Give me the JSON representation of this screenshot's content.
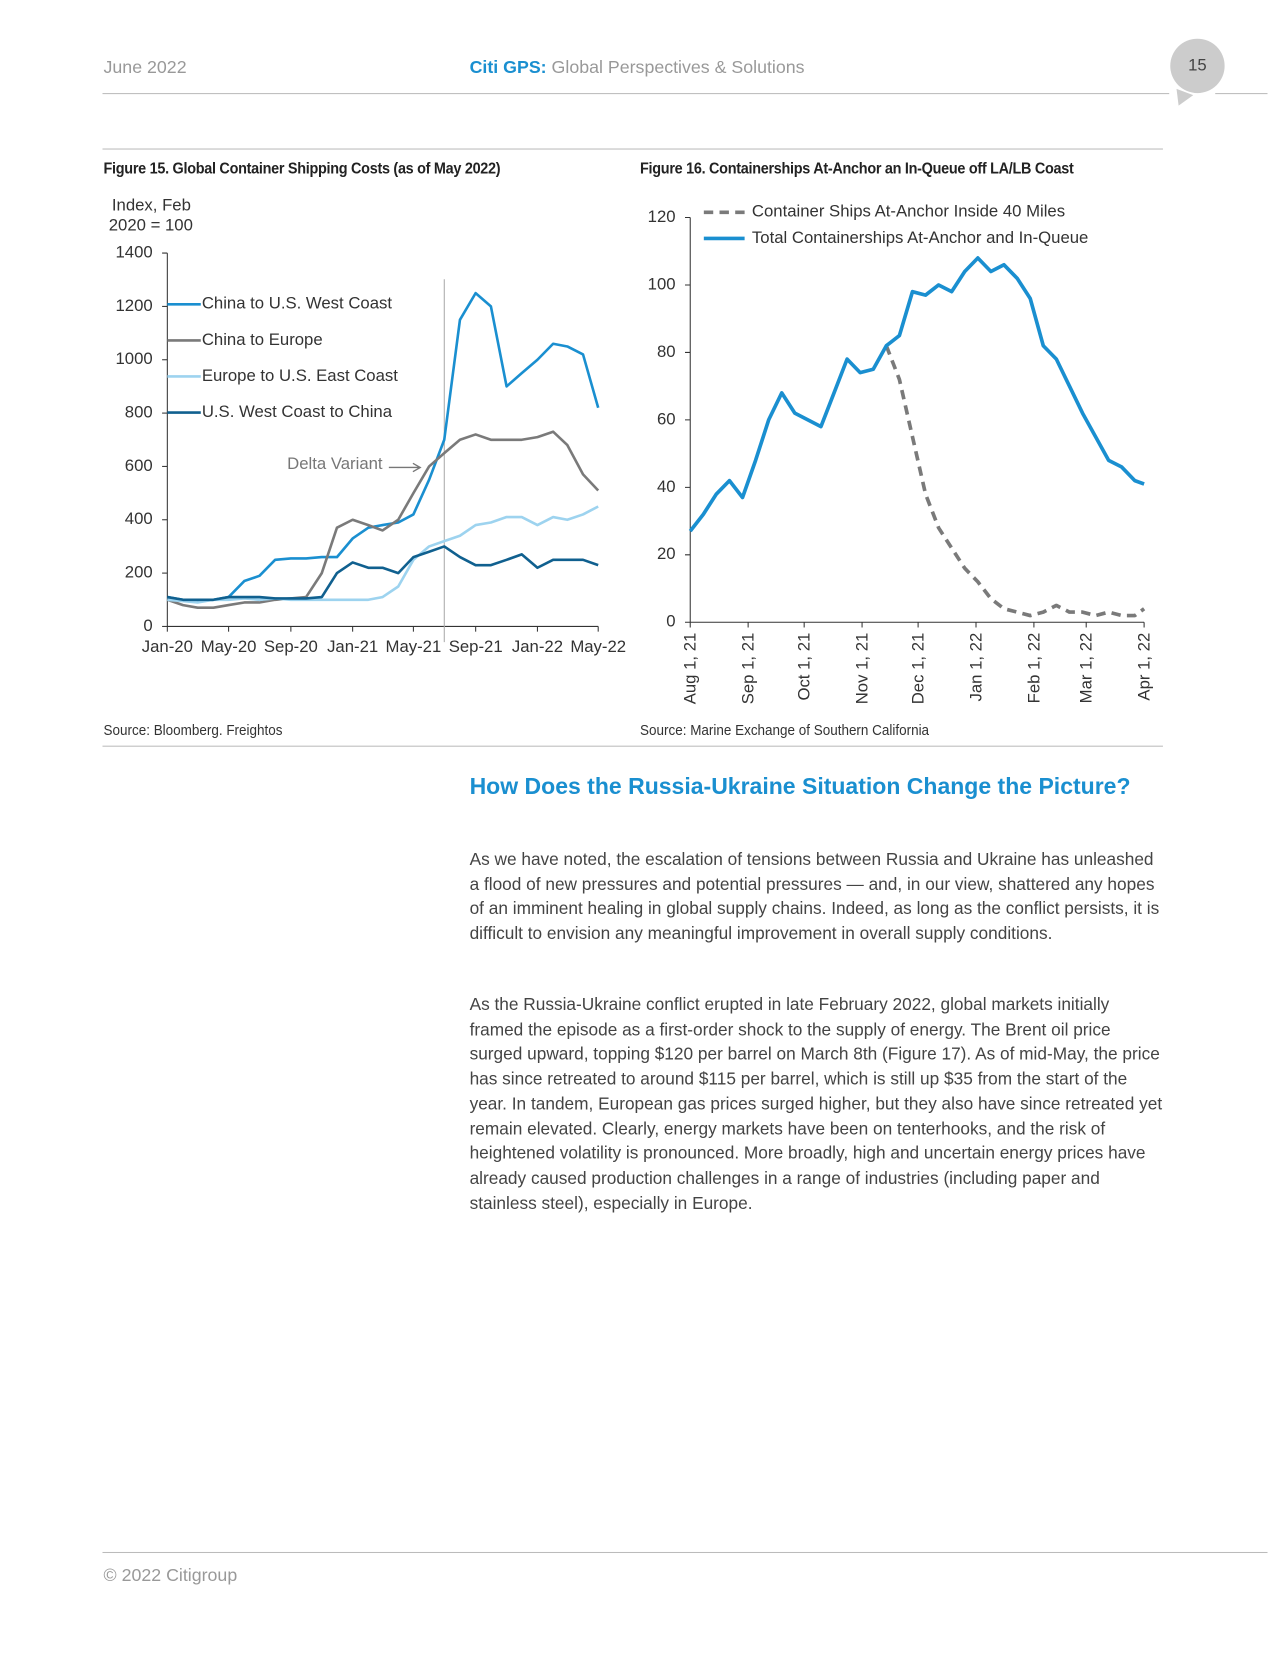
{
  "header": {
    "date": "June 2022",
    "brand": "Citi GPS:",
    "brand_subtitle": "Global Perspectives & Solutions",
    "page_number": 15
  },
  "chart_data": [
    {
      "type": "line",
      "title": "Figure 15. Global Container Shipping Costs (as of May 2022)",
      "source": "Source: Bloomberg. Freightos",
      "y_label": [
        "Index, Feb",
        "2020 = 100"
      ],
      "x": [
        "2020-01",
        "2020-02",
        "2020-03",
        "2020-04",
        "2020-05",
        "2020-06",
        "2020-07",
        "2020-08",
        "2020-09",
        "2020-10",
        "2020-11",
        "2020-12",
        "2021-01",
        "2021-02",
        "2021-03",
        "2021-04",
        "2021-05",
        "2021-06",
        "2021-07",
        "2021-08",
        "2021-09",
        "2021-10",
        "2021-11",
        "2021-12",
        "2022-01",
        "2022-02",
        "2022-03",
        "2022-04",
        "2022-05"
      ],
      "series": [
        {
          "name": "China to U.S. West Coast",
          "color": "#1a8fd0",
          "values": [
            110,
            100,
            95,
            100,
            110,
            170,
            190,
            250,
            255,
            255,
            260,
            260,
            330,
            370,
            380,
            390,
            420,
            550,
            700,
            1150,
            1250,
            1200,
            900,
            950,
            1000,
            1060,
            1050,
            1020,
            820
          ]
        },
        {
          "name": "China to Europe",
          "color": "#7a7a7a",
          "values": [
            100,
            80,
            70,
            70,
            80,
            90,
            90,
            100,
            105,
            110,
            200,
            370,
            400,
            380,
            360,
            400,
            500,
            600,
            650,
            700,
            720,
            700,
            700,
            700,
            710,
            730,
            680,
            570,
            510
          ]
        },
        {
          "name": "Europe to U.S. East Coast",
          "color": "#9dd3ef",
          "values": [
            100,
            95,
            90,
            100,
            100,
            105,
            100,
            105,
            100,
            100,
            100,
            100,
            100,
            100,
            110,
            150,
            250,
            300,
            320,
            340,
            380,
            390,
            410,
            410,
            380,
            410,
            400,
            420,
            450
          ]
        },
        {
          "name": "U.S. West Coast to China",
          "color": "#10608f",
          "values": [
            110,
            100,
            100,
            100,
            110,
            110,
            110,
            105,
            105,
            105,
            110,
            200,
            240,
            220,
            220,
            200,
            260,
            280,
            300,
            260,
            230,
            230,
            250,
            270,
            220,
            250,
            250,
            250,
            230
          ]
        }
      ],
      "annotation": {
        "text": "Delta Variant",
        "x": "2021-07"
      },
      "xlim": [
        "2020-01",
        "2022-05"
      ],
      "xticks": [
        {
          "value": "2020-01",
          "label": "Jan-20"
        },
        {
          "value": "2020-05",
          "label": "May-20"
        },
        {
          "value": "2020-09",
          "label": "Sep-20"
        },
        {
          "value": "2021-01",
          "label": "Jan-21"
        },
        {
          "value": "2021-05",
          "label": "May-21"
        },
        {
          "value": "2021-09",
          "label": "Sep-21"
        },
        {
          "value": "2022-01",
          "label": "Jan-22"
        },
        {
          "value": "2022-05",
          "label": "May-22"
        }
      ],
      "ylim": [
        0,
        1400
      ],
      "yticks": [
        0,
        200,
        400,
        600,
        800,
        1000,
        1200,
        1400
      ],
      "legend": "upper left",
      "line_width": 2.5
    },
    {
      "type": "line",
      "title": "Figure 16. Containerships At-Anchor an In-Queue off LA/LB Coast",
      "source": "Source: Marine Exchange of Southern California",
      "x": [
        "2021-08-01",
        "2021-08-08",
        "2021-08-15",
        "2021-08-22",
        "2021-08-29",
        "2021-09-05",
        "2021-09-12",
        "2021-09-19",
        "2021-09-26",
        "2021-10-03",
        "2021-10-10",
        "2021-10-17",
        "2021-10-24",
        "2021-10-31",
        "2021-11-07",
        "2021-11-14",
        "2021-11-21",
        "2021-11-28",
        "2021-12-05",
        "2021-12-12",
        "2021-12-19",
        "2021-12-26",
        "2022-01-02",
        "2022-01-09",
        "2022-01-16",
        "2022-01-23",
        "2022-01-30",
        "2022-02-06",
        "2022-02-13",
        "2022-02-20",
        "2022-02-27",
        "2022-03-06",
        "2022-03-13",
        "2022-03-20",
        "2022-03-27",
        "2022-04-01"
      ],
      "series": [
        {
          "name": "Container Ships At-Anchor Inside 40 Miles",
          "color": "#7a7a7a",
          "dashed": true,
          "values": [
            null,
            null,
            null,
            null,
            null,
            null,
            null,
            null,
            null,
            null,
            null,
            null,
            null,
            null,
            null,
            82,
            72,
            55,
            38,
            28,
            22,
            16,
            12,
            7,
            4,
            3,
            2,
            3,
            5,
            3,
            3,
            2,
            3,
            2,
            2,
            4
          ]
        },
        {
          "name": "Total Containerships At-Anchor and In-Queue",
          "color": "#1a8fd0",
          "dashed": false,
          "values": [
            27,
            32,
            38,
            42,
            37,
            48,
            60,
            68,
            62,
            60,
            58,
            68,
            78,
            74,
            75,
            82,
            85,
            98,
            97,
            100,
            98,
            104,
            108,
            104,
            106,
            102,
            96,
            82,
            78,
            70,
            62,
            55,
            48,
            46,
            42,
            41
          ]
        }
      ],
      "xlim": [
        "2021-08-01",
        "2022-04-01"
      ],
      "xticks": [
        {
          "value": "2021-08-01",
          "label": "Aug 1, 21"
        },
        {
          "value": "2021-09-01",
          "label": "Sep 1, 21"
        },
        {
          "value": "2021-10-01",
          "label": "Oct 1, 21"
        },
        {
          "value": "2021-11-01",
          "label": "Nov 1, 21"
        },
        {
          "value": "2021-12-01",
          "label": "Dec 1, 21"
        },
        {
          "value": "2022-01-01",
          "label": "Jan 1, 22"
        },
        {
          "value": "2022-02-01",
          "label": "Feb 1, 22"
        },
        {
          "value": "2022-03-01",
          "label": "Mar 1, 22"
        },
        {
          "value": "2022-04-01",
          "label": "Apr 1, 22"
        }
      ],
      "ylim": [
        0,
        120
      ],
      "yticks": [
        0,
        20,
        40,
        60,
        80,
        100,
        120
      ],
      "legend": "upper left",
      "line_width": 3.5
    }
  ],
  "article": {
    "heading": "How Does the Russia-Ukraine Situation Change the Picture?",
    "paragraphs": [
      "As we have noted, the escalation of tensions between Russia and Ukraine has unleashed a flood of new pressures and potential pressures — and, in our view, shattered any hopes of an imminent healing in global supply chains. Indeed, as long as the conflict persists, it is difficult to envision any meaningful improvement in overall supply conditions.",
      "As the Russia-Ukraine conflict erupted in late February 2022, global markets initially framed the episode as a first-order shock to the supply of energy. The Brent oil price surged upward, topping $120 per barrel on March 8th (Figure 17). As of mid-May, the price has since retreated to around $115 per barrel, which is still up $35 from the start of the year. In tandem, European gas prices surged higher, but they also have since retreated yet remain elevated. Clearly, energy markets have been on tenterhooks, and the risk of heightened volatility is pronounced. More broadly, high and uncertain energy prices have already caused production challenges in a range of industries (including paper and stainless steel), especially in Europe."
    ]
  },
  "footer": {
    "copyright": "© 2022 Citigroup"
  }
}
